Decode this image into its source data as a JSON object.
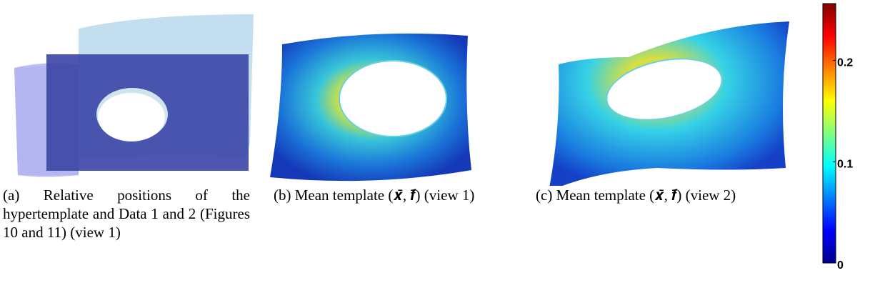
{
  "panels": [
    {
      "caption": "(a) Relative positions of the hypertemplate and Data 1 and 2 (Figures 10 and 11) (view 1)"
    },
    {
      "caption": "(b) Mean template (𝒙̄, 𝒇̄) (view 1)"
    },
    {
      "caption": "(c) Mean template (𝒙̄, 𝒇̄) (view 2)"
    }
  ],
  "colorbar": {
    "lim": [
      0,
      0.256
    ],
    "ticks": [
      0,
      0.1,
      0.2
    ]
  }
}
